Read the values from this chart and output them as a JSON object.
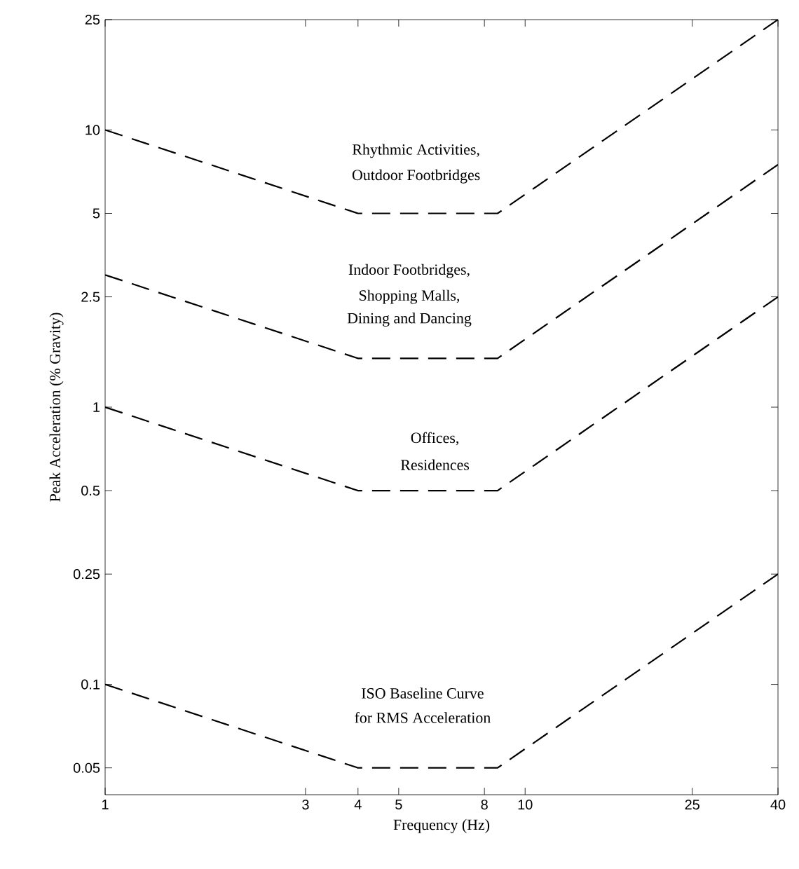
{
  "chart_data": {
    "type": "line",
    "xlabel": "Frequency (Hz)",
    "ylabel": "Peak Acceleration (% Gravity)",
    "log": "xy",
    "xlim": [
      1,
      40
    ],
    "ylim": [
      0.04,
      25
    ],
    "xticks": [
      1,
      3,
      4,
      5,
      8,
      10,
      25,
      40
    ],
    "yticks": [
      0.05,
      0.1,
      0.25,
      0.5,
      1,
      2.5,
      5,
      10,
      25
    ],
    "line_style": "dashed",
    "marker": "none",
    "grid": false,
    "series": [
      {
        "color": "#000000",
        "x": [
          1,
          4,
          8.6,
          40
        ],
        "values": [
          10,
          5,
          5,
          25
        ]
      },
      {
        "color": "#000000",
        "x": [
          1,
          4,
          8.6,
          40
        ],
        "values": [
          3,
          1.5,
          1.5,
          7.5
        ]
      },
      {
        "color": "#000000",
        "x": [
          1,
          4,
          8.6,
          40
        ],
        "values": [
          1,
          0.5,
          0.5,
          2.5
        ]
      },
      {
        "color": "#000000",
        "x": [
          1,
          4,
          8.6,
          40
        ],
        "values": [
          0.1,
          0.05,
          0.05,
          0.25
        ]
      }
    ],
    "annotations": [
      "Rhythmic Activities,",
      "Outdoor Footbridges",
      "Indoor Footbridges,",
      "Shopping Malls,",
      "Dining and Dancing",
      "Offices,",
      "Residences",
      "ISO Baseline Curve",
      "for RMS Acceleration"
    ]
  }
}
